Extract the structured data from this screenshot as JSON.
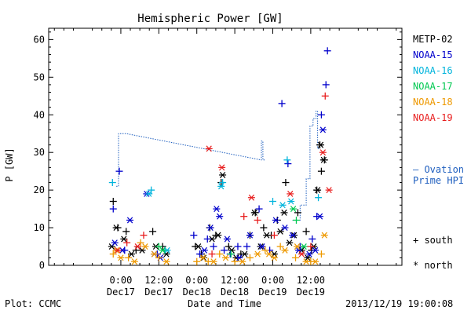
{
  "chart_data": {
    "type": "scatter",
    "title": "Hemispheric Power [GW]",
    "xlabel": "Date and Time",
    "ylabel": "P [GW]",
    "ylim": [
      0,
      63
    ],
    "xlim": [
      -0.95,
      3.7
    ],
    "x_unit": "days from 2013-12-17 00:00 UT",
    "yticks": [
      0,
      10,
      20,
      30,
      40,
      50,
      60
    ],
    "xticks": [
      {
        "x": 0.0,
        "time": "0:00",
        "date": "Dec17"
      },
      {
        "x": 0.5,
        "time": "12:00",
        "date": "Dec17"
      },
      {
        "x": 1.0,
        "time": "0:00",
        "date": "Dec18"
      },
      {
        "x": 1.5,
        "time": "12:00",
        "date": "Dec18"
      },
      {
        "x": 2.0,
        "time": "0:00",
        "date": "Dec19"
      },
      {
        "x": 2.5,
        "time": "12:00",
        "date": "Dec19"
      }
    ],
    "footer_left": "Plot: CCMC",
    "footer_right": "2013/12/19 19:00:08",
    "legend_position": "right",
    "series": [
      {
        "name": "METP-02",
        "color": "#000000",
        "south": [
          [
            -0.1,
            17
          ],
          [
            -0.04,
            10
          ],
          [
            0.07,
            9
          ],
          [
            0.2,
            4
          ],
          [
            0.42,
            9
          ],
          [
            0.55,
            5
          ],
          [
            0.98,
            5
          ],
          [
            1.06,
            3
          ],
          [
            1.17,
            10
          ],
          [
            1.25,
            8
          ],
          [
            1.32,
            22
          ],
          [
            1.42,
            5
          ],
          [
            1.58,
            3
          ],
          [
            1.7,
            8
          ],
          [
            1.77,
            14
          ],
          [
            1.88,
            10
          ],
          [
            1.98,
            8
          ],
          [
            2.06,
            12
          ],
          [
            2.17,
            22
          ],
          [
            2.33,
            14
          ],
          [
            2.44,
            9
          ],
          [
            2.51,
            4
          ],
          [
            2.58,
            20
          ],
          [
            2.62,
            32
          ],
          [
            2.64,
            25
          ],
          [
            2.68,
            28
          ]
        ],
        "north": [
          [
            -0.12,
            5
          ],
          [
            -0.06,
            10
          ],
          [
            0.04,
            7
          ],
          [
            0.14,
            3
          ],
          [
            0.28,
            4
          ],
          [
            0.46,
            5
          ],
          [
            0.6,
            3
          ],
          [
            1.02,
            5
          ],
          [
            1.09,
            2
          ],
          [
            1.2,
            7
          ],
          [
            1.28,
            8
          ],
          [
            1.34,
            24
          ],
          [
            1.46,
            4
          ],
          [
            1.52,
            2
          ],
          [
            1.63,
            3
          ],
          [
            1.76,
            14
          ],
          [
            1.84,
            5
          ],
          [
            1.92,
            8
          ],
          [
            2.02,
            3
          ],
          [
            2.1,
            9
          ],
          [
            2.15,
            14
          ],
          [
            2.22,
            6
          ],
          [
            2.28,
            8
          ],
          [
            2.38,
            4
          ],
          [
            2.46,
            2
          ],
          [
            2.54,
            5
          ],
          [
            2.59,
            20
          ],
          [
            2.63,
            32
          ],
          [
            2.67,
            28
          ]
        ]
      },
      {
        "name": "NOAA-15",
        "color": "#0000cc",
        "south": [
          [
            -0.1,
            15
          ],
          [
            -0.02,
            25
          ],
          [
            0.05,
            4
          ],
          [
            0.48,
            3
          ],
          [
            0.96,
            8
          ],
          [
            1.04,
            3
          ],
          [
            1.14,
            7
          ],
          [
            1.22,
            5
          ],
          [
            1.36,
            4
          ],
          [
            1.44,
            3
          ],
          [
            1.54,
            5
          ],
          [
            1.66,
            5
          ],
          [
            1.82,
            15
          ],
          [
            1.96,
            4
          ],
          [
            2.12,
            43
          ],
          [
            2.2,
            27
          ],
          [
            2.36,
            5
          ],
          [
            2.52,
            7
          ],
          [
            2.58,
            13
          ],
          [
            2.64,
            40
          ],
          [
            2.7,
            48
          ],
          [
            2.72,
            57
          ]
        ],
        "north": [
          [
            -0.08,
            6
          ],
          [
            0.02,
            4
          ],
          [
            0.12,
            12
          ],
          [
            0.34,
            19
          ],
          [
            0.44,
            3
          ],
          [
            0.52,
            2
          ],
          [
            1.1,
            4
          ],
          [
            1.18,
            10
          ],
          [
            1.26,
            15
          ],
          [
            1.3,
            13
          ],
          [
            1.4,
            7
          ],
          [
            1.56,
            2
          ],
          [
            1.7,
            8
          ],
          [
            1.86,
            5
          ],
          [
            2.04,
            12
          ],
          [
            2.16,
            10
          ],
          [
            2.26,
            8
          ],
          [
            2.34,
            4
          ],
          [
            2.48,
            3
          ],
          [
            2.56,
            4
          ],
          [
            2.62,
            13
          ],
          [
            2.66,
            36
          ]
        ]
      },
      {
        "name": "NOAA-16",
        "color": "#00b4dc",
        "south": [
          [
            -0.11,
            22
          ],
          [
            0.4,
            20
          ],
          [
            0.58,
            4
          ],
          [
            1.34,
            22
          ],
          [
            2.0,
            17
          ],
          [
            2.19,
            28
          ],
          [
            2.6,
            18
          ]
        ],
        "north": [
          [
            0.37,
            19
          ],
          [
            0.61,
            4
          ],
          [
            1.32,
            21
          ],
          [
            2.13,
            16
          ],
          [
            2.24,
            17
          ]
        ]
      },
      {
        "name": "NOAA-17",
        "color": "#00c850",
        "south": [
          [
            0.5,
            5
          ],
          [
            1.45,
            3
          ],
          [
            2.31,
            12
          ]
        ],
        "north": [
          [
            0.55,
            4
          ],
          [
            2.27,
            15
          ],
          [
            2.41,
            5
          ]
        ]
      },
      {
        "name": "NOAA-18",
        "color": "#ee9900",
        "south": [
          [
            -0.1,
            3
          ],
          [
            0.1,
            2
          ],
          [
            0.26,
            6
          ],
          [
            0.5,
            2
          ],
          [
            1.0,
            1
          ],
          [
            1.15,
            1
          ],
          [
            1.3,
            3
          ],
          [
            1.5,
            1
          ],
          [
            1.7,
            2
          ],
          [
            1.9,
            4
          ],
          [
            2.1,
            5
          ],
          [
            2.3,
            2
          ],
          [
            2.5,
            1
          ],
          [
            2.64,
            3
          ]
        ],
        "north": [
          [
            -0.06,
            4
          ],
          [
            0.0,
            2
          ],
          [
            0.18,
            1
          ],
          [
            0.32,
            5
          ],
          [
            0.44,
            3
          ],
          [
            0.6,
            1
          ],
          [
            1.08,
            2
          ],
          [
            1.22,
            1
          ],
          [
            1.38,
            2
          ],
          [
            1.6,
            1
          ],
          [
            1.8,
            3
          ],
          [
            1.95,
            3
          ],
          [
            2.02,
            2
          ],
          [
            2.16,
            4
          ],
          [
            2.32,
            5
          ],
          [
            2.44,
            1
          ],
          [
            2.56,
            1
          ],
          [
            2.68,
            8
          ]
        ]
      },
      {
        "name": "NOAA-19",
        "color": "#e81e1e",
        "south": [
          [
            0.08,
            6
          ],
          [
            0.3,
            8
          ],
          [
            1.2,
            3
          ],
          [
            1.62,
            13
          ],
          [
            1.8,
            12
          ],
          [
            2.02,
            8
          ],
          [
            2.5,
            5
          ],
          [
            2.69,
            45
          ]
        ],
        "north": [
          [
            -0.04,
            4
          ],
          [
            0.22,
            5
          ],
          [
            1.16,
            31
          ],
          [
            1.33,
            26
          ],
          [
            1.72,
            18
          ],
          [
            2.23,
            19
          ],
          [
            2.38,
            3
          ],
          [
            2.66,
            30
          ],
          [
            2.74,
            20
          ]
        ]
      }
    ],
    "ovation": {
      "name": "Ovation Prime HPI",
      "legend_line1": "— Ovation",
      "legend_line2": "Prime HPI",
      "color": "#1f5fbf",
      "segments": [
        [
          [
            -0.06,
            21
          ],
          [
            -0.03,
            21
          ]
        ],
        [
          [
            -0.03,
            21
          ],
          [
            -0.03,
            35
          ],
          [
            0.07,
            35
          ],
          [
            1.85,
            28
          ],
          [
            1.85,
            33
          ],
          [
            1.87,
            33
          ],
          [
            1.87,
            28
          ],
          [
            1.9,
            28
          ]
        ],
        [
          [
            2.26,
            12
          ],
          [
            2.36,
            12
          ],
          [
            2.36,
            16
          ],
          [
            2.44,
            16
          ],
          [
            2.44,
            23
          ],
          [
            2.49,
            23
          ],
          [
            2.49,
            37
          ],
          [
            2.53,
            37
          ],
          [
            2.53,
            39
          ],
          [
            2.57,
            39
          ],
          [
            2.57,
            41
          ],
          [
            2.59,
            41
          ],
          [
            2.59,
            31
          ],
          [
            2.62,
            31
          ]
        ]
      ]
    },
    "marker_legend": {
      "south": "+ south",
      "north": "* north"
    }
  }
}
